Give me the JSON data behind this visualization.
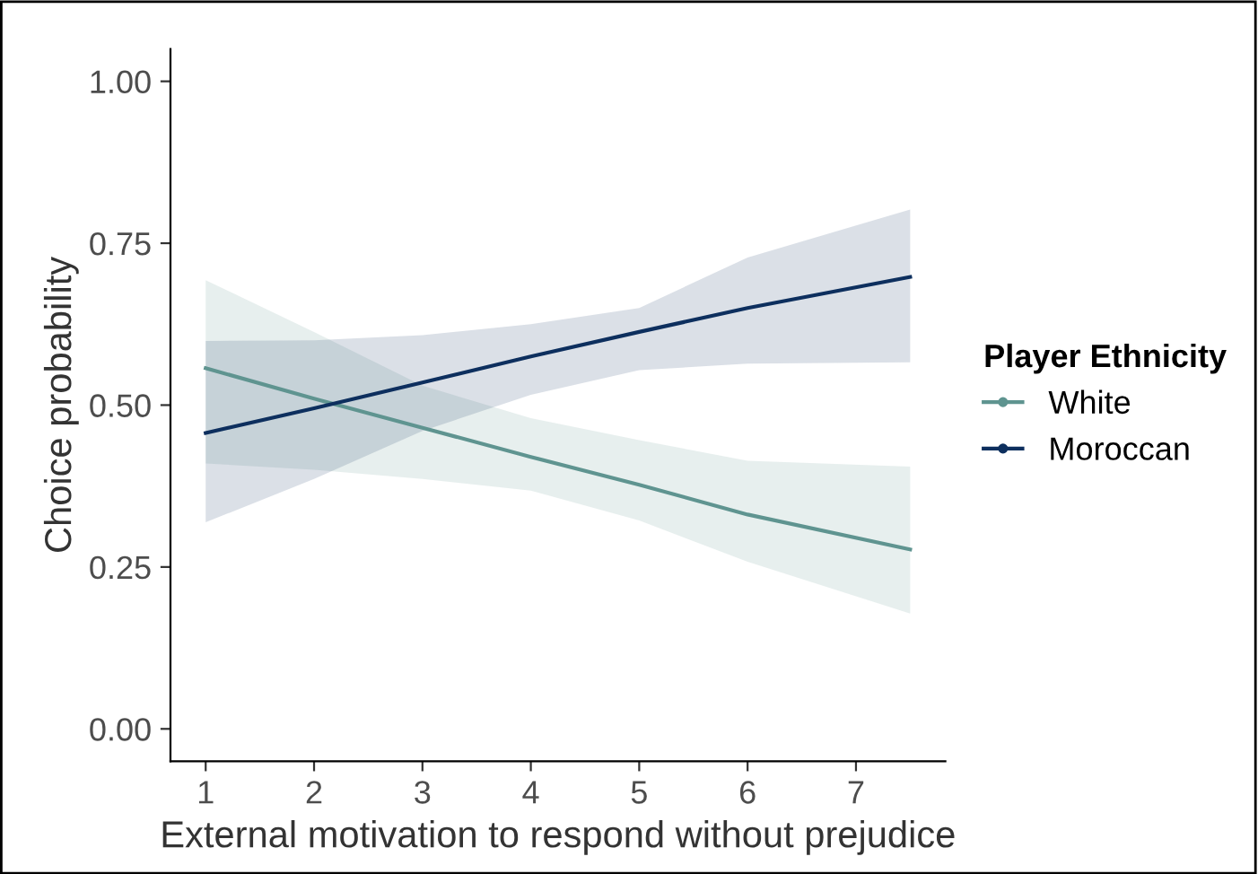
{
  "chart_data": {
    "type": "line",
    "xlabel": "External motivation to respond without prejudice",
    "ylabel": "Choice probability",
    "legend_title": "Player Ethnicity",
    "legend": "right",
    "grid": false,
    "xlim": [
      0.675,
      7.825
    ],
    "xticks": [
      1,
      2,
      3,
      4,
      5,
      6,
      7
    ],
    "ylim": [
      -0.05,
      1.05
    ],
    "yticks": [
      {
        "value": 0,
        "label": "0.00"
      },
      {
        "value": 0.25,
        "label": "0.25"
      },
      {
        "value": 0.5,
        "label": "0.50"
      },
      {
        "value": 0.75,
        "label": "0.75"
      },
      {
        "value": 1,
        "label": "1.00"
      }
    ],
    "series": [
      {
        "name": "White",
        "color": "#5f9490",
        "x": [
          1,
          2,
          3,
          4,
          5,
          6,
          7.5
        ],
        "values": [
          0.557,
          0.51,
          0.465,
          0.42,
          0.377,
          0.331,
          0.277
        ],
        "lower": [
          0.41,
          0.4,
          0.386,
          0.368,
          0.322,
          0.258,
          0.178
        ],
        "upper": [
          0.693,
          0.613,
          0.53,
          0.48,
          0.446,
          0.414,
          0.405
        ]
      },
      {
        "name": "Moroccan",
        "color": "#0d2f5e",
        "x": [
          1,
          2,
          3,
          4,
          5,
          6,
          7.5
        ],
        "values": [
          0.457,
          0.495,
          0.535,
          0.575,
          0.613,
          0.65,
          0.698
        ],
        "lower": [
          0.319,
          0.386,
          0.46,
          0.516,
          0.554,
          0.564,
          0.566
        ],
        "upper": [
          0.599,
          0.6,
          0.608,
          0.625,
          0.65,
          0.728,
          0.802
        ]
      }
    ]
  }
}
